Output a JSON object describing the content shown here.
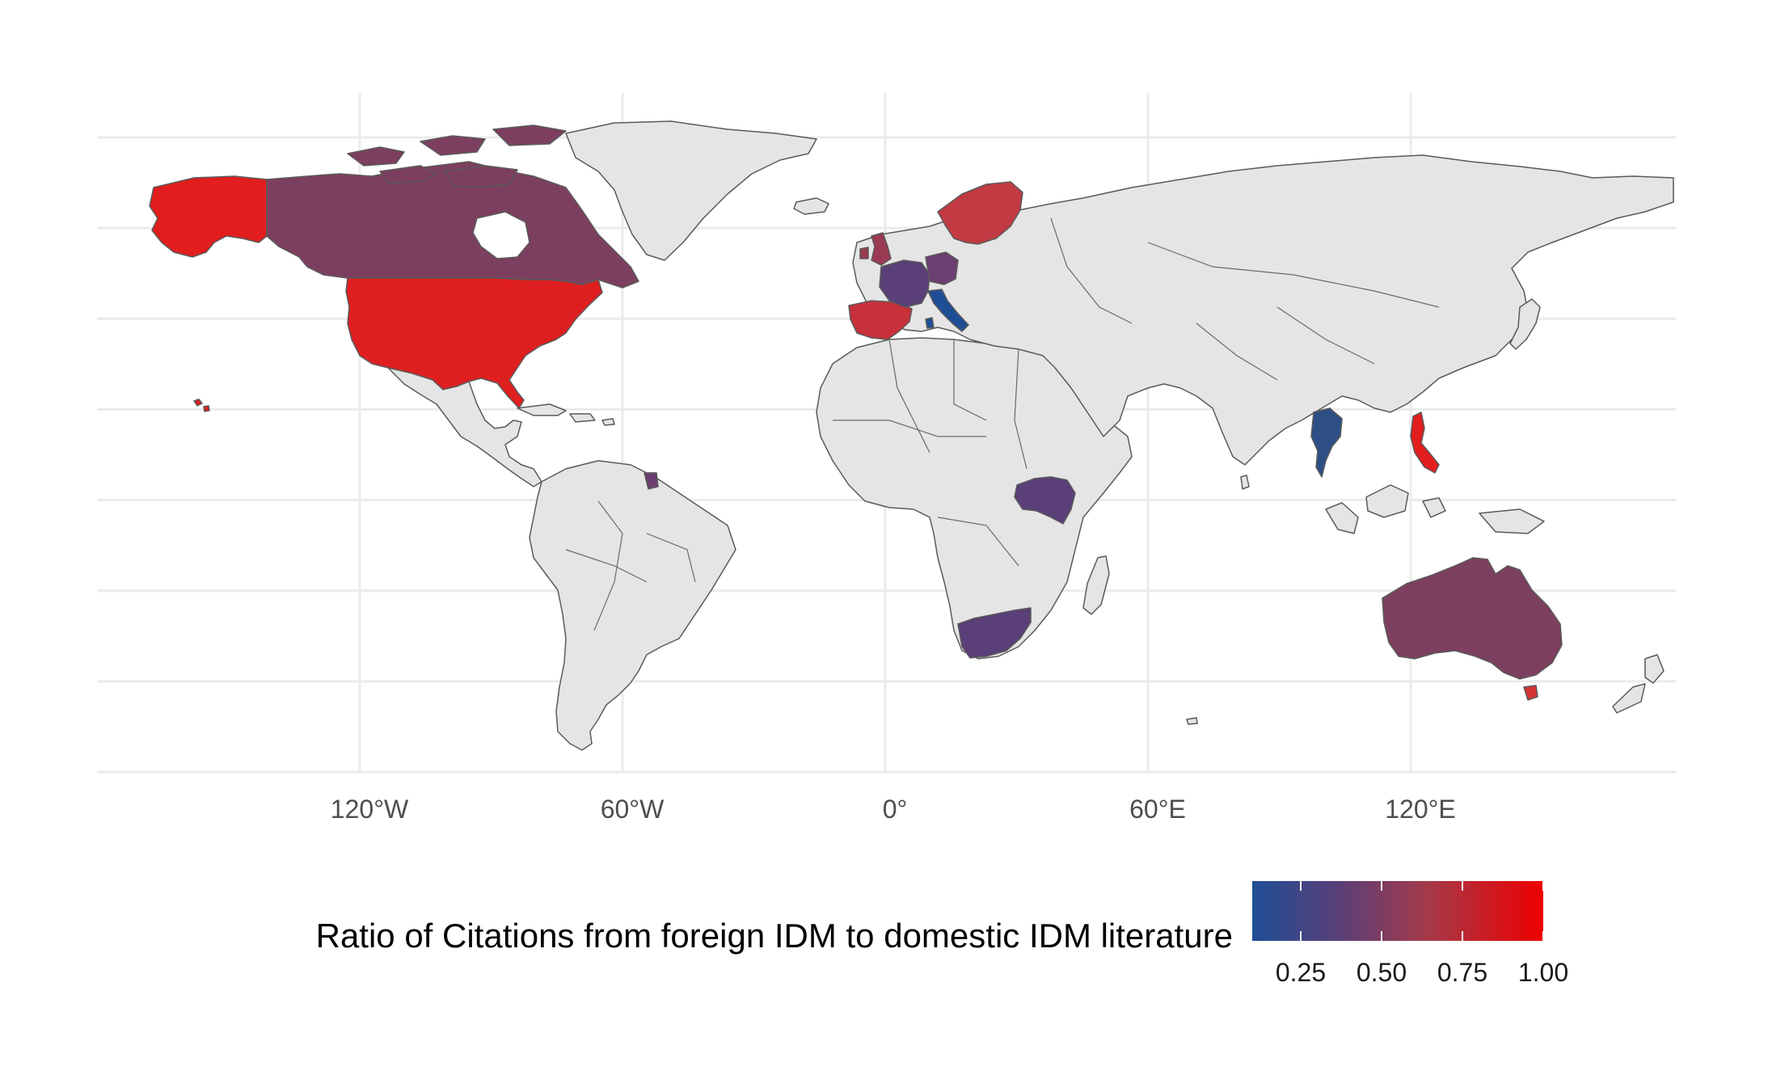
{
  "colors": {
    "background": "#ffffff",
    "grid": "#ebebeb",
    "no_data": "#e5e5e5",
    "outline": "#5a5a5a",
    "scale_low": "#1f4e96",
    "scale_high": "#ee0000"
  },
  "axis": {
    "x_ticks": [
      {
        "lon": -120,
        "label": "120°W"
      },
      {
        "lon": -60,
        "label": "60°W"
      },
      {
        "lon": 0,
        "label": "0°"
      },
      {
        "lon": 60,
        "label": "60°E"
      },
      {
        "lon": 120,
        "label": "120°E"
      }
    ],
    "y_gridlines_lat": [
      80,
      60,
      40,
      20,
      0,
      -20,
      -40,
      -60
    ]
  },
  "legend": {
    "title": "Ratio of Citations from foreign IDM to domestic IDM literature",
    "range": [
      0.1,
      1.0
    ],
    "ticks": [
      {
        "value": 0.25,
        "label": "0.25"
      },
      {
        "value": 0.5,
        "label": "0.50"
      },
      {
        "value": 0.75,
        "label": "0.75"
      },
      {
        "value": 1.0,
        "label": "1.00"
      }
    ]
  },
  "chart_data": {
    "type": "choropleth",
    "projection": "equirectangular",
    "xlim": [
      -180,
      180
    ],
    "ylim": [
      -60,
      85
    ],
    "fill_variable": "Ratio of Citations from foreign IDM to domestic IDM literature",
    "regions": [
      {
        "name": "United States",
        "value": 1.0
      },
      {
        "name": "Alaska (United States)",
        "value": 1.0
      },
      {
        "name": "Hawaii (United States)",
        "value": 1.0
      },
      {
        "name": "Canada",
        "value": 0.45
      },
      {
        "name": "Philippines",
        "value": 1.0
      },
      {
        "name": "Spain",
        "value": 0.75
      },
      {
        "name": "Sweden",
        "value": 0.72
      },
      {
        "name": "Finland",
        "value": 0.72
      },
      {
        "name": "United Kingdom",
        "value": 0.55
      },
      {
        "name": "France",
        "value": 0.3
      },
      {
        "name": "Germany",
        "value": 0.35
      },
      {
        "name": "Italy",
        "value": 0.12
      },
      {
        "name": "Thailand",
        "value": 0.18
      },
      {
        "name": "Kenya",
        "value": 0.22
      },
      {
        "name": "Uganda",
        "value": 0.22
      },
      {
        "name": "South Africa",
        "value": 0.3
      },
      {
        "name": "Suriname",
        "value": 0.35
      },
      {
        "name": "Australia",
        "value": 0.45
      }
    ]
  }
}
